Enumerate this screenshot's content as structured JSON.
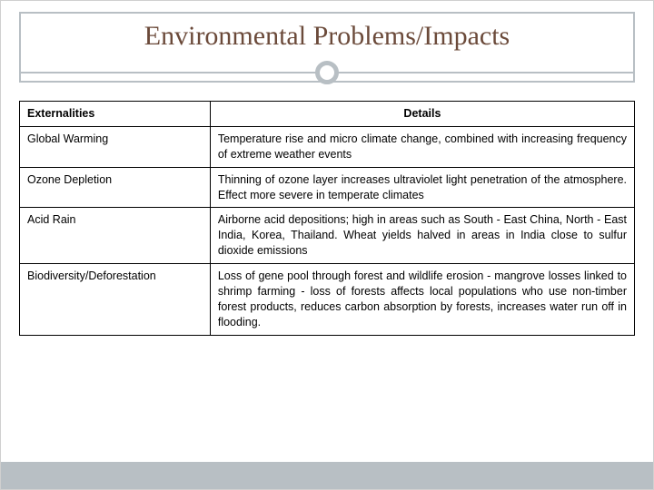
{
  "title": "Environmental Problems/Impacts",
  "table": {
    "columns": [
      "Externalities",
      "Details"
    ],
    "col_widths_pct": [
      31,
      69
    ],
    "header_bold": true,
    "border_color": "#000000",
    "font_size_pt": 12.5,
    "rows": [
      {
        "externality": "Global Warming",
        "details": "Temperature rise and micro climate change, combined with increasing frequency of extreme weather events"
      },
      {
        "externality": "Ozone Depletion",
        "details": "Thinning of ozone layer increases ultraviolet light penetration of the atmosphere. Effect more severe in temperate climates"
      },
      {
        "externality": "Acid Rain",
        "details": "Airborne acid depositions; high in areas such as South - East China, North - East India, Korea, Thailand. Wheat yields halved in areas in India close to sulfur dioxide emissions"
      },
      {
        "externality": "Biodiversity/Deforestation",
        "details": "Loss of gene pool through forest and wildlife erosion - mangrove losses linked to shrimp farming - loss of forests affects local populations who use non-timber forest products, reduces carbon absorption by forests, increases water run off in flooding."
      }
    ]
  },
  "styling": {
    "slide_width": 720,
    "slide_height": 540,
    "title_font": "Georgia",
    "title_fontsize": 30,
    "title_color": "#6b4a3a",
    "frame_border_color": "#b8bfc4",
    "frame_border_width": 2,
    "divider_circle_diameter": 26,
    "divider_circle_border_width": 5,
    "bottom_bar_color": "#b8bfc4",
    "bottom_bar_height": 30,
    "background_color": "#ffffff"
  }
}
